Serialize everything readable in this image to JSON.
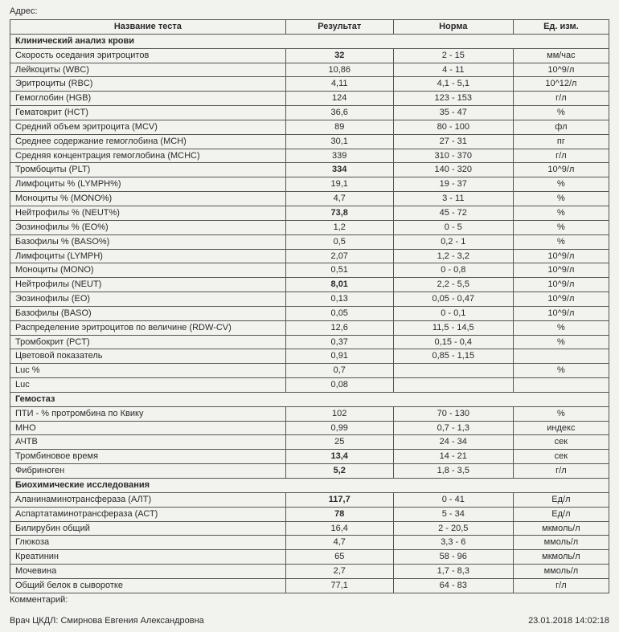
{
  "top_label": "Адрес:",
  "headers": {
    "name": "Название теста",
    "result": "Результат",
    "norm": "Норма",
    "unit": "Ед. изм."
  },
  "sections": [
    {
      "title": "Клинический анализ крови",
      "rows": [
        {
          "name": "Скорость оседания эритроцитов",
          "result": "32",
          "bold": true,
          "norm": "2 - 15",
          "unit": "мм/час"
        },
        {
          "name": "Лейкоциты (WBC)",
          "result": "10,86",
          "norm": "4 - 11",
          "unit": "10^9/л"
        },
        {
          "name": "Эритроциты (RBC)",
          "result": "4,11",
          "norm": "4,1 - 5,1",
          "unit": "10^12/л"
        },
        {
          "name": "Гемоглобин (HGB)",
          "result": "124",
          "norm": "123 - 153",
          "unit": "г/л"
        },
        {
          "name": "Гематокрит (HCT)",
          "result": "36,6",
          "norm": "35 - 47",
          "unit": "%"
        },
        {
          "name": "Средний объем эритроцита (MCV)",
          "result": "89",
          "norm": "80 - 100",
          "unit": "фл"
        },
        {
          "name": "Среднее содержание гемоглобина (MCH)",
          "result": "30,1",
          "norm": "27 - 31",
          "unit": "пг"
        },
        {
          "name": "Средняя концентрация гемоглобина (MCHC)",
          "result": "339",
          "norm": "310 - 370",
          "unit": "г/л"
        },
        {
          "name": "Тромбоциты (PLT)",
          "result": "334",
          "bold": true,
          "norm": "140 - 320",
          "unit": "10^9/л"
        },
        {
          "name": "Лимфоциты % (LYMPH%)",
          "result": "19,1",
          "norm": "19 - 37",
          "unit": "%"
        },
        {
          "name": "Моноциты % (MONO%)",
          "result": "4,7",
          "norm": "3 - 11",
          "unit": "%"
        },
        {
          "name": "Нейтрофилы % (NEUT%)",
          "result": "73,8",
          "bold": true,
          "norm": "45 - 72",
          "unit": "%"
        },
        {
          "name": "Эозинофилы % (EO%)",
          "result": "1,2",
          "norm": "0 - 5",
          "unit": "%"
        },
        {
          "name": "Базофилы % (BASO%)",
          "result": "0,5",
          "norm": "0,2 - 1",
          "unit": "%"
        },
        {
          "name": "Лимфоциты (LYMPH)",
          "result": "2,07",
          "norm": "1,2 - 3,2",
          "unit": "10^9/л"
        },
        {
          "name": "Моноциты (MONO)",
          "result": "0,51",
          "norm": "0 - 0,8",
          "unit": "10^9/л"
        },
        {
          "name": "Нейтрофилы (NEUT)",
          "result": "8,01",
          "bold": true,
          "norm": "2,2 - 5,5",
          "unit": "10^9/л"
        },
        {
          "name": "Эозинофилы (EO)",
          "result": "0,13",
          "norm": "0,05 - 0,47",
          "unit": "10^9/л"
        },
        {
          "name": "Базофилы (BASO)",
          "result": "0,05",
          "norm": "0 - 0,1",
          "unit": "10^9/л"
        },
        {
          "name": "Распределение эритроцитов по величине (RDW-CV)",
          "result": "12,6",
          "norm": "11,5 - 14,5",
          "unit": "%"
        },
        {
          "name": "Тромбокрит (PCT)",
          "result": "0,37",
          "norm": "0,15 - 0,4",
          "unit": "%"
        },
        {
          "name": "Цветовой показатель",
          "result": "0,91",
          "norm": "0,85 - 1,15",
          "unit": ""
        },
        {
          "name": "Luc %",
          "result": "0,7",
          "norm": "",
          "unit": "%"
        },
        {
          "name": "Luc",
          "result": "0,08",
          "norm": "",
          "unit": ""
        }
      ]
    },
    {
      "title": "Гемостаз",
      "rows": [
        {
          "name": "ПТИ - % протромбина по Квику",
          "result": "102",
          "norm": "70 - 130",
          "unit": "%"
        },
        {
          "name": "МНО",
          "result": "0,99",
          "norm": "0,7 - 1,3",
          "unit": "индекс"
        },
        {
          "name": "АЧТВ",
          "result": "25",
          "norm": "24 - 34",
          "unit": "сек"
        },
        {
          "name": "Тромбиновое время",
          "result": "13,4",
          "bold": true,
          "norm": "14 - 21",
          "unit": "сек"
        },
        {
          "name": "Фибриноген",
          "result": "5,2",
          "bold": true,
          "norm": "1,8 - 3,5",
          "unit": "г/л"
        }
      ]
    },
    {
      "title": "Биохимические исследования",
      "rows": [
        {
          "name": "Аланинаминотрансфераза (АЛТ)",
          "result": "117,7",
          "bold": true,
          "norm": "0 - 41",
          "unit": "Ед/л"
        },
        {
          "name": "Аспартатаминотрансфераза (АСТ)",
          "result": "78",
          "bold": true,
          "norm": "5 - 34",
          "unit": "Ед/л"
        },
        {
          "name": "Билирубин общий",
          "result": "16,4",
          "norm": "2 - 20,5",
          "unit": "мкмоль/л"
        },
        {
          "name": "Глюкоза",
          "result": "4,7",
          "norm": "3,3 - 6",
          "unit": "ммоль/л"
        },
        {
          "name": "Креатинин",
          "result": "65",
          "norm": "58 - 96",
          "unit": "мкмоль/л"
        },
        {
          "name": "Мочевина",
          "result": "2,7",
          "norm": "1,7 - 8,3",
          "unit": "ммоль/л"
        },
        {
          "name": "Общий белок в сыворотке",
          "result": "77,1",
          "norm": "64 - 83",
          "unit": "г/л"
        }
      ]
    }
  ],
  "comment_label": "Комментарий:",
  "doctor_label": "Врач ЦКДЛ: Смирнова Евгения Александровна",
  "timestamp": "23.01.2018 14:02:18"
}
